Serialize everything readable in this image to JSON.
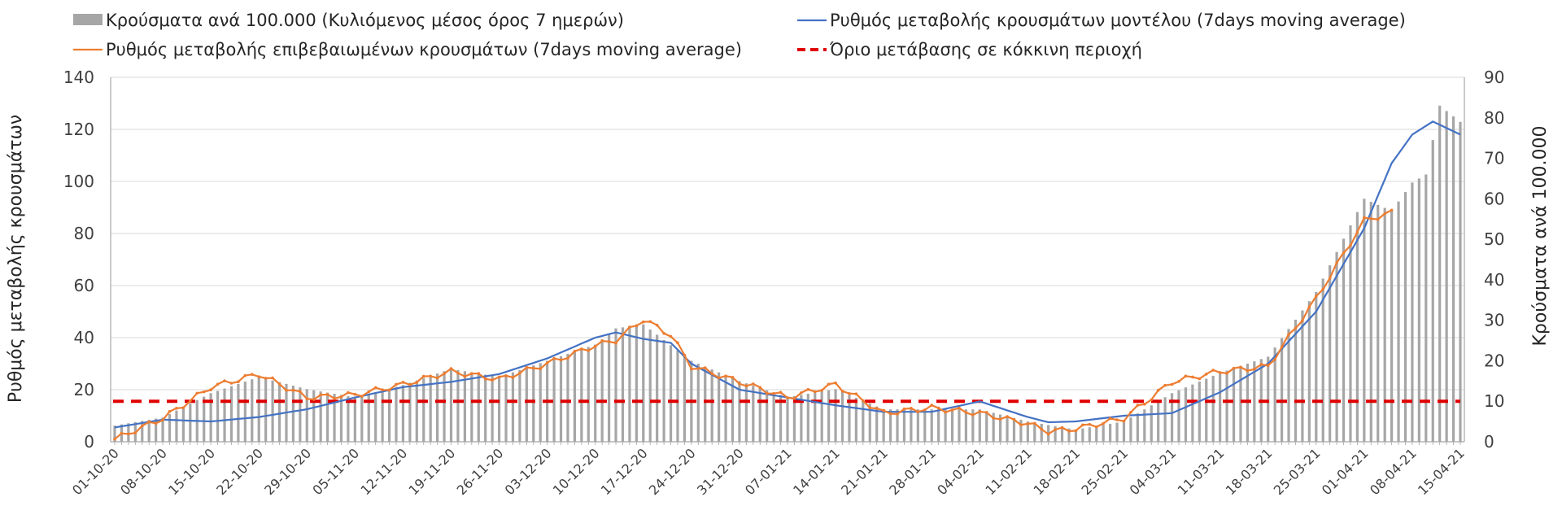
{
  "chart_data": {
    "type": "bar+line",
    "title": "",
    "legend": {
      "placement": "top",
      "entries": [
        {
          "key": "bars",
          "label": "Κρούσματα ανά 100.000 (Κυλιόμενος μέσος όρος 7 ημερών)",
          "kind": "bar",
          "color": "#a6a6a6"
        },
        {
          "key": "model",
          "label": "Ρυθμός μεταβολής κρουσμάτων μοντέλου (7days moving average)",
          "kind": "line",
          "color": "#4472c4"
        },
        {
          "key": "confirmed",
          "label": "Ρυθμός μεταβολής επιβεβαιωμένων κρουσμάτων (7days moving average)",
          "kind": "line-marker",
          "color": "#ed7d31"
        },
        {
          "key": "threshold",
          "label": "Όριο μετάβασης σε κόκκινη περιοχή",
          "kind": "dashed",
          "color": "#e00000"
        }
      ]
    },
    "ylabel_left": "Ρυθμός μεταβολής κρουσμάτων",
    "ylabel_right": "Κρούσματα ανά 100.000",
    "ylim_left": [
      0,
      140
    ],
    "ylim_right": [
      0,
      90
    ],
    "yticks_left": [
      0,
      20,
      40,
      60,
      80,
      100,
      120,
      140
    ],
    "yticks_right": [
      0,
      10,
      20,
      30,
      40,
      50,
      60,
      70,
      80,
      90
    ],
    "grid": true,
    "x_start": "2020-10-01",
    "x_end": "2021-04-15",
    "x_tick_labels": [
      "01-10-20",
      "08-10-20",
      "15-10-20",
      "22-10-20",
      "29-10-20",
      "05-11-20",
      "12-11-20",
      "19-11-20",
      "26-11-20",
      "03-12-20",
      "10-12-20",
      "17-12-20",
      "24-12-20",
      "31-12-20",
      "07-01-21",
      "14-01-21",
      "21-01-21",
      "28-01-21",
      "04-02-21",
      "11-02-21",
      "18-02-21",
      "25-02-21",
      "04-03-21",
      "11-03-21",
      "18-03-21",
      "25-03-21",
      "01-04-21",
      "08-04-21",
      "15-04-21"
    ],
    "threshold_right_axis": 10,
    "series": [
      {
        "name": "Κρούσματα ανά 100.000 (Κυλιόμενος μέσος όρος 7 ημερών)",
        "axis": "right",
        "points": [
          [
            "2020-10-01",
            4
          ],
          [
            "2020-10-08",
            6
          ],
          [
            "2020-10-15",
            12
          ],
          [
            "2020-10-22",
            16
          ],
          [
            "2020-10-29",
            13
          ],
          [
            "2020-11-05",
            11
          ],
          [
            "2020-11-12",
            14
          ],
          [
            "2020-11-19",
            18
          ],
          [
            "2020-11-26",
            16
          ],
          [
            "2020-12-03",
            20
          ],
          [
            "2020-12-10",
            24
          ],
          [
            "2020-12-13",
            28
          ],
          [
            "2020-12-17",
            29
          ],
          [
            "2020-12-24",
            20
          ],
          [
            "2020-12-31",
            15
          ],
          [
            "2021-01-07",
            11
          ],
          [
            "2021-01-14",
            13
          ],
          [
            "2021-01-21",
            8
          ],
          [
            "2021-01-28",
            8
          ],
          [
            "2021-02-04",
            8
          ],
          [
            "2021-02-11",
            5
          ],
          [
            "2021-02-18",
            3
          ],
          [
            "2021-02-25",
            5
          ],
          [
            "2021-03-04",
            12
          ],
          [
            "2021-03-11",
            17
          ],
          [
            "2021-03-18",
            21
          ],
          [
            "2021-03-25",
            37
          ],
          [
            "2021-04-01",
            60
          ],
          [
            "2021-04-05",
            57
          ],
          [
            "2021-04-08",
            64
          ],
          [
            "2021-04-10",
            66
          ],
          [
            "2021-04-12",
            83
          ],
          [
            "2021-04-15",
            79
          ]
        ]
      },
      {
        "name": "Ρυθμός μεταβολής κρουσμάτων μοντέλου (7days moving average)",
        "axis": "left",
        "points": [
          [
            "2020-10-01",
            5.5
          ],
          [
            "2020-10-08",
            8.5
          ],
          [
            "2020-10-15",
            7.8
          ],
          [
            "2020-10-22",
            9.5
          ],
          [
            "2020-10-29",
            12.5
          ],
          [
            "2020-11-05",
            17
          ],
          [
            "2020-11-12",
            21
          ],
          [
            "2020-11-19",
            23
          ],
          [
            "2020-11-26",
            26
          ],
          [
            "2020-12-03",
            32
          ],
          [
            "2020-12-10",
            40
          ],
          [
            "2020-12-13",
            42
          ],
          [
            "2020-12-17",
            39.5
          ],
          [
            "2020-12-21",
            38
          ],
          [
            "2020-12-24",
            30
          ],
          [
            "2020-12-31",
            20
          ],
          [
            "2021-01-07",
            17
          ],
          [
            "2021-01-14",
            14
          ],
          [
            "2021-01-21",
            11.5
          ],
          [
            "2021-01-28",
            11.5
          ],
          [
            "2021-02-04",
            15.5
          ],
          [
            "2021-02-11",
            9.5
          ],
          [
            "2021-02-14",
            7.5
          ],
          [
            "2021-02-18",
            7.8
          ],
          [
            "2021-02-25",
            10
          ],
          [
            "2021-03-04",
            11
          ],
          [
            "2021-03-11",
            19
          ],
          [
            "2021-03-18",
            30
          ],
          [
            "2021-03-25",
            50
          ],
          [
            "2021-04-01",
            82
          ],
          [
            "2021-04-05",
            107
          ],
          [
            "2021-04-08",
            118
          ],
          [
            "2021-04-11",
            123
          ],
          [
            "2021-04-15",
            118
          ]
        ]
      },
      {
        "name": "Ρυθμός μεταβολής επιβεβαιωμένων κρουσμάτων (7days moving average)",
        "axis": "left",
        "points": [
          [
            "2020-10-01",
            1
          ],
          [
            "2020-10-08",
            9
          ],
          [
            "2020-10-15",
            21
          ],
          [
            "2020-10-22",
            26
          ],
          [
            "2020-10-29",
            17
          ],
          [
            "2020-11-05",
            18
          ],
          [
            "2020-11-12",
            22
          ],
          [
            "2020-11-19",
            27
          ],
          [
            "2020-11-26",
            24
          ],
          [
            "2020-12-03",
            30
          ],
          [
            "2020-12-10",
            37
          ],
          [
            "2020-12-13",
            39
          ],
          [
            "2020-12-17",
            47
          ],
          [
            "2020-12-21",
            41
          ],
          [
            "2020-12-24",
            29
          ],
          [
            "2020-12-31",
            23
          ],
          [
            "2021-01-07",
            17
          ],
          [
            "2021-01-14",
            22
          ],
          [
            "2021-01-21",
            11
          ],
          [
            "2021-01-28",
            13
          ],
          [
            "2021-02-04",
            11
          ],
          [
            "2021-02-11",
            7
          ],
          [
            "2021-02-14",
            4
          ],
          [
            "2021-02-18",
            5
          ],
          [
            "2021-02-25",
            9
          ],
          [
            "2021-03-04",
            23
          ],
          [
            "2021-03-11",
            27
          ],
          [
            "2021-03-18",
            29
          ],
          [
            "2021-03-25",
            55
          ],
          [
            "2021-04-01",
            85
          ],
          [
            "2021-04-05",
            88
          ]
        ]
      }
    ]
  }
}
